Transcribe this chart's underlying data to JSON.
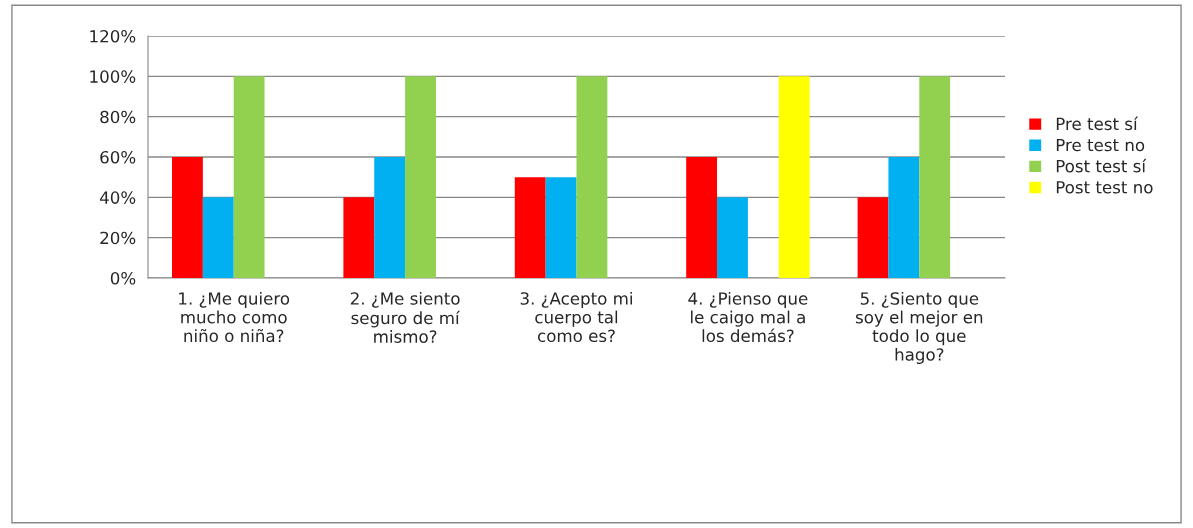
{
  "chart_data": {
    "type": "bar",
    "categories": [
      "1. ¿Me quiero\nmucho como\nniño o niña?",
      "2. ¿Me siento\nseguro de mí\nmismo?",
      "3. ¿Acepto mi\ncuerpo tal\ncomo es?",
      "4. ¿Pienso que\nle caigo mal a\nlos demás?",
      "5. ¿Siento que\nsoy el mejor en\ntodo lo que\nhago?"
    ],
    "series": [
      {
        "name": "Pre test sí",
        "color": "#ff0000",
        "values": [
          60,
          40,
          50,
          60,
          40
        ]
      },
      {
        "name": "Pre test no",
        "color": "#00b0f0",
        "values": [
          40,
          60,
          50,
          40,
          60
        ]
      },
      {
        "name": "Post test sí",
        "color": "#92d050",
        "values": [
          100,
          100,
          100,
          0,
          100
        ]
      },
      {
        "name": "Post test no",
        "color": "#ffff00",
        "values": [
          0,
          0,
          0,
          100,
          0
        ]
      }
    ],
    "ylim": [
      0,
      120
    ],
    "yticks": [
      {
        "value": 0,
        "label": "0%"
      },
      {
        "value": 20,
        "label": "20%"
      },
      {
        "value": 40,
        "label": "40%"
      },
      {
        "value": 60,
        "label": "60%"
      },
      {
        "value": 80,
        "label": "80%"
      },
      {
        "value": 100,
        "label": "100%"
      },
      {
        "value": 120,
        "label": "120%"
      }
    ],
    "grid": "y",
    "legend": "right"
  }
}
